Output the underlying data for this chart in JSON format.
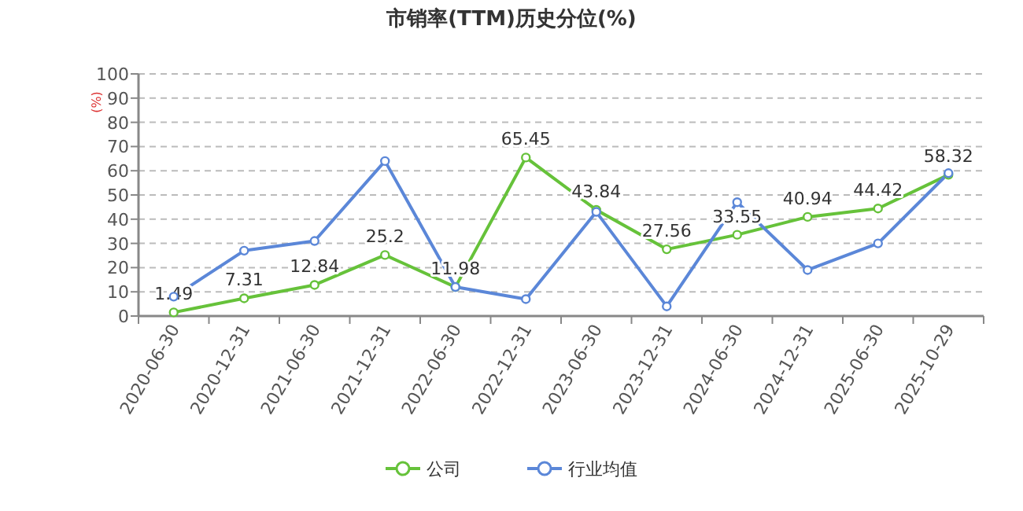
{
  "chart_data": {
    "type": "line",
    "title": "市销率(TTM)历史分位(%)",
    "ylabel": "(%)",
    "categories": [
      "2020-06-30",
      "2020-12-31",
      "2021-06-30",
      "2021-12-31",
      "2022-06-30",
      "2022-12-31",
      "2023-06-30",
      "2023-12-31",
      "2024-06-30",
      "2024-12-31",
      "2025-06-30",
      "2025-10-29"
    ],
    "series": [
      {
        "name": "公司",
        "color": "#66c23a",
        "values": [
          1.49,
          7.31,
          12.84,
          25.2,
          11.98,
          65.45,
          43.84,
          27.56,
          33.55,
          40.94,
          44.42,
          58.32
        ],
        "value_labels": [
          "1.49",
          "7.31",
          "12.84",
          "25.2",
          "11.98",
          "65.45",
          "43.84",
          "27.56",
          "33.55",
          "40.94",
          "44.42",
          "58.32"
        ]
      },
      {
        "name": "行业均值",
        "color": "#5b87d8",
        "values": [
          8,
          27,
          31,
          64,
          12,
          7,
          43,
          4,
          47,
          19,
          30,
          59
        ]
      }
    ],
    "ylim": [
      0,
      100
    ],
    "yticks": [
      0,
      10,
      20,
      30,
      40,
      50,
      60,
      70,
      80,
      90,
      100
    ],
    "grid": "y",
    "legend": "bottom",
    "marker": "circle",
    "line_style": "solid"
  }
}
